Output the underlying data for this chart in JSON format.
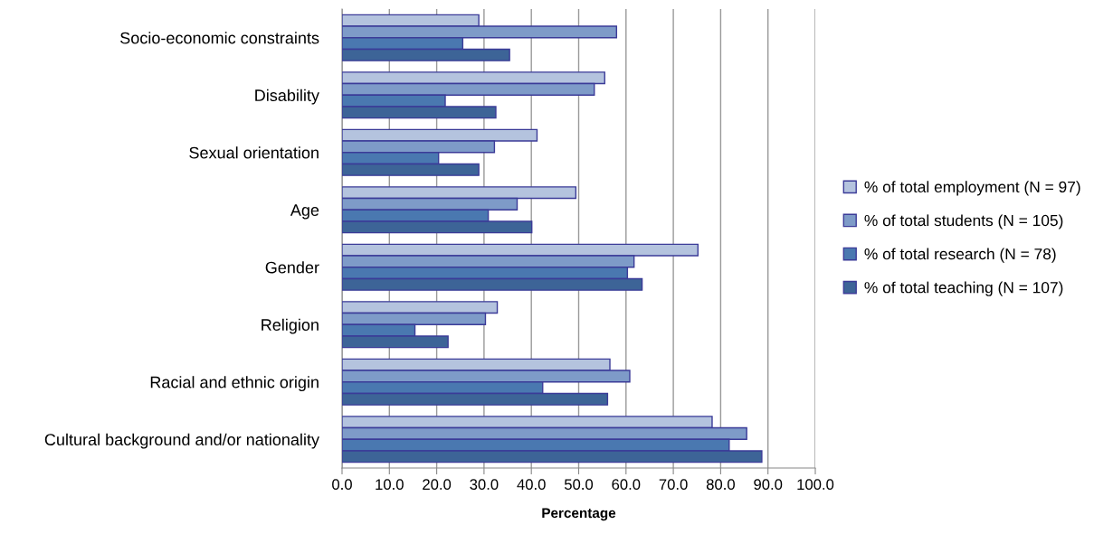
{
  "chart_data": {
    "type": "bar",
    "orientation": "horizontal",
    "xlabel": "Percentage",
    "categories": [
      "Socio-economic constraints",
      "Disability",
      "Sexual orientation",
      "Age",
      "Gender",
      "Religion",
      "Racial and ethnic origin",
      "Cultural background and/or nationality"
    ],
    "series": [
      {
        "name": "% of total employment (N = 97)",
        "color": "#b4c3de",
        "values": [
          28.9,
          55.5,
          41.2,
          49.4,
          75.2,
          32.8,
          56.6,
          78.2
        ]
      },
      {
        "name": "% of total students (N = 105)",
        "color": "#7e9bc8",
        "values": [
          58.0,
          53.3,
          32.2,
          37.0,
          61.7,
          30.3,
          60.8,
          85.5
        ]
      },
      {
        "name": "% of total research (N = 78)",
        "color": "#4a78b0",
        "values": [
          25.5,
          21.8,
          20.4,
          30.9,
          60.3,
          15.4,
          42.4,
          81.8
        ]
      },
      {
        "name": "% of total teaching (N = 107)",
        "color": "#3d6497",
        "values": [
          35.4,
          32.5,
          28.9,
          40.1,
          63.4,
          22.4,
          56.1,
          88.7
        ]
      }
    ],
    "xlim": [
      0,
      100
    ],
    "xticks": [
      {
        "value": 0,
        "label": "0.0"
      },
      {
        "value": 10,
        "label": "10.0"
      },
      {
        "value": 20,
        "label": "20.0"
      },
      {
        "value": 30,
        "label": "30.0"
      },
      {
        "value": 40,
        "label": "40.0"
      },
      {
        "value": 50,
        "label": "50.0"
      },
      {
        "value": 60,
        "label": "60.0"
      },
      {
        "value": 70,
        "label": "70.0"
      },
      {
        "value": 80,
        "label": "80.0"
      },
      {
        "value": 90,
        "label": "90.0"
      },
      {
        "value": 100,
        "label": "100.0"
      }
    ],
    "grid": "x",
    "legend": "right"
  }
}
